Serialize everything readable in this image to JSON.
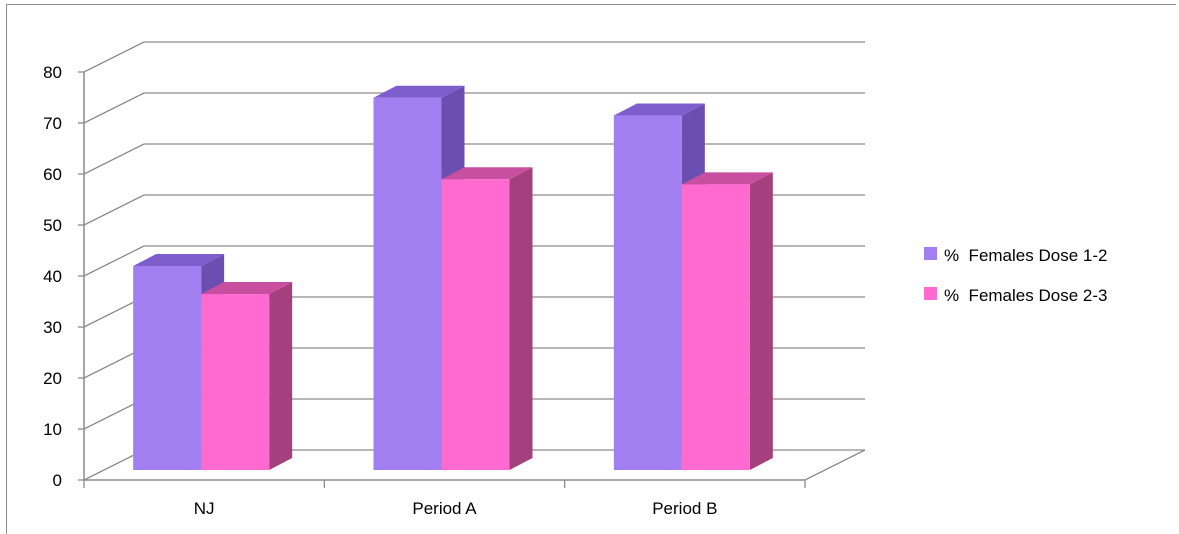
{
  "chart_data": {
    "type": "bar",
    "categories": [
      "NJ",
      "Period A",
      "Period B"
    ],
    "series": [
      {
        "name": "%  Females Dose 1-2",
        "values": [
          40,
          73,
          69.5
        ],
        "color": "#a17ff0",
        "side_color": "#6b4fb0",
        "top_color": "#7d5ecc"
      },
      {
        "name": "%  Females Dose 2-3",
        "values": [
          34.5,
          57,
          56
        ],
        "color": "#ff6ad0",
        "side_color": "#a5407f",
        "top_color": "#c84fa0"
      }
    ],
    "ylim": [
      0,
      80
    ],
    "yticks": [
      "0",
      "10",
      "20",
      "30",
      "40",
      "50",
      "60",
      "70",
      "80"
    ],
    "grid": true,
    "legend_position": "right",
    "projection": "3d-clustered-column"
  }
}
